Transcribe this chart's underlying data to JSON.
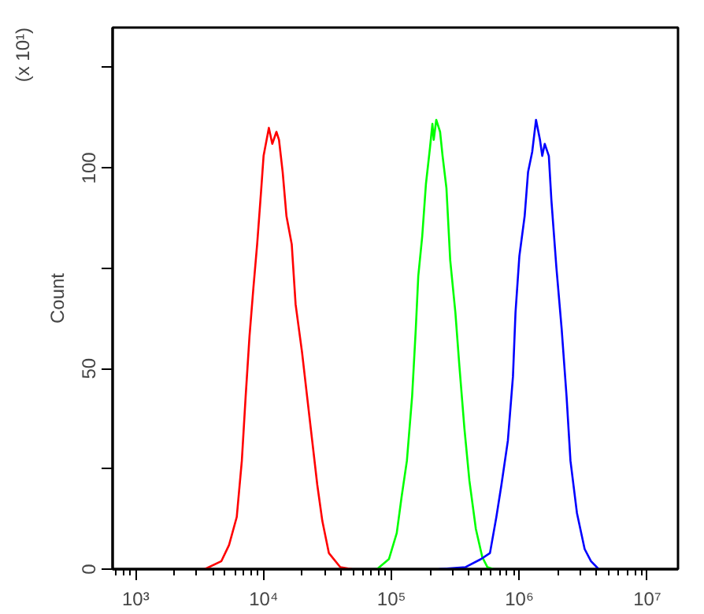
{
  "chart_data": {
    "type": "line",
    "ylabel": "Count",
    "annotations": [
      "(x 10¹)"
    ],
    "log": "x",
    "grid": false,
    "xlim": [
      660,
      17400000
    ],
    "ylim": [
      0,
      135
    ],
    "xticks": [
      {
        "value": 700,
        "label": null
      },
      {
        "value": 800,
        "label": null
      },
      {
        "value": 900,
        "label": null
      },
      {
        "value": 1000,
        "label": "10³"
      },
      {
        "value": 2000,
        "label": null
      },
      {
        "value": 3000,
        "label": null
      },
      {
        "value": 4000,
        "label": null
      },
      {
        "value": 5000,
        "label": null
      },
      {
        "value": 6000,
        "label": null
      },
      {
        "value": 7000,
        "label": null
      },
      {
        "value": 8000,
        "label": null
      },
      {
        "value": 9000,
        "label": null
      },
      {
        "value": 10000,
        "label": "10⁴"
      },
      {
        "value": 20000,
        "label": null
      },
      {
        "value": 30000,
        "label": null
      },
      {
        "value": 40000,
        "label": null
      },
      {
        "value": 50000,
        "label": null
      },
      {
        "value": 60000,
        "label": null
      },
      {
        "value": 70000,
        "label": null
      },
      {
        "value": 80000,
        "label": null
      },
      {
        "value": 90000,
        "label": null
      },
      {
        "value": 100000,
        "label": "10⁵"
      },
      {
        "value": 200000,
        "label": null
      },
      {
        "value": 300000,
        "label": null
      },
      {
        "value": 400000,
        "label": null
      },
      {
        "value": 500000,
        "label": null
      },
      {
        "value": 600000,
        "label": null
      },
      {
        "value": 700000,
        "label": null
      },
      {
        "value": 800000,
        "label": null
      },
      {
        "value": 900000,
        "label": null
      },
      {
        "value": 1000000,
        "label": "10⁶"
      },
      {
        "value": 2000000,
        "label": null
      },
      {
        "value": 3000000,
        "label": null
      },
      {
        "value": 4000000,
        "label": null
      },
      {
        "value": 5000000,
        "label": null
      },
      {
        "value": 6000000,
        "label": null
      },
      {
        "value": 7000000,
        "label": null
      },
      {
        "value": 8000000,
        "label": null
      },
      {
        "value": 9000000,
        "label": null
      },
      {
        "value": 10000000,
        "label": "10⁷"
      }
    ],
    "yticks": [
      0,
      {
        "value": 25,
        "label": null
      },
      50,
      {
        "value": 75,
        "label": null
      },
      100,
      {
        "value": 125,
        "label": null
      }
    ],
    "series": [
      {
        "color": "#ff0000",
        "x": [
          3470,
          4680,
          5370,
          6170,
          6760,
          7240,
          7760,
          8320,
          8910,
          9550,
          10000,
          11000,
          11700,
          12600,
          13200,
          14100,
          15100,
          16600,
          17800,
          20000,
          21900,
          24000,
          26300,
          28800,
          32400,
          39800,
          49000
        ],
        "values": [
          0,
          2,
          6,
          13,
          27,
          43,
          58,
          70,
          81,
          94,
          103,
          110,
          106,
          109,
          107,
          99,
          88,
          81,
          66,
          54,
          43,
          32,
          21,
          12,
          4,
          0.5,
          0
        ]
      },
      {
        "color": "#00ff00",
        "x": [
          77100,
          95500,
          110000,
          120000,
          132000,
          145000,
          155000,
          162000,
          174000,
          186000,
          200000,
          209000,
          214000,
          224000,
          240000,
          251000,
          269000,
          288000,
          316000,
          339000,
          372000,
          407000,
          457000,
          513000,
          562000,
          631000
        ],
        "values": [
          0,
          2.5,
          9,
          18,
          27,
          43,
          60,
          73,
          83,
          96,
          105,
          111,
          107,
          112,
          109,
          103,
          95,
          77,
          64,
          51,
          35,
          22,
          10,
          3,
          0.5,
          0
        ]
      },
      {
        "color": "#0000ff",
        "x": [
          234000,
          380000,
          501000,
          589000,
          661000,
          724000,
          813000,
          891000,
          933000,
          1000000,
          1100000,
          1170000,
          1260000,
          1350000,
          1450000,
          1510000,
          1580000,
          1700000,
          1780000,
          1950000,
          2140000,
          2340000,
          2510000,
          2820000,
          3240000,
          3630000,
          4170000
        ],
        "values": [
          0,
          0.5,
          2.5,
          4,
          13,
          21,
          32,
          48,
          64,
          78,
          88,
          99,
          104,
          112,
          107,
          103,
          106,
          103,
          92,
          75,
          60,
          43,
          27,
          14,
          5,
          2,
          0
        ]
      }
    ]
  }
}
